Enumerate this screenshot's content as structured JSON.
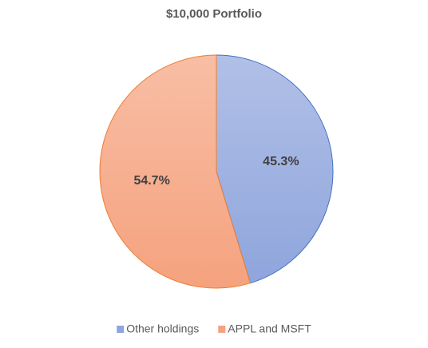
{
  "chart_data": {
    "type": "pie",
    "title": "$10,000 Portfolio",
    "categories": [
      "Other holdings",
      "APPL and MSFT"
    ],
    "values": [
      45.3,
      54.7
    ],
    "value_labels": [
      "45.3%",
      "54.7%"
    ],
    "colors": [
      "#8fa5dc",
      "#f5a27e"
    ],
    "edge_colors": [
      "#4472c4",
      "#ed7d31"
    ],
    "legend": "bottom"
  }
}
